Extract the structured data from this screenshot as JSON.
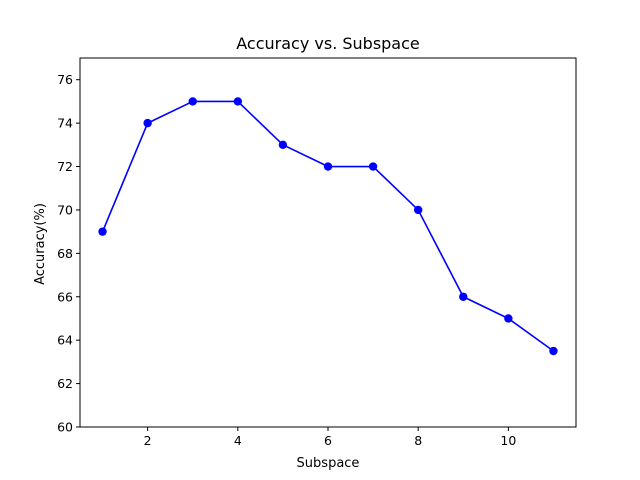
{
  "chart_data": {
    "type": "line",
    "title": "Accuracy vs. Subspace",
    "xlabel": "Subspace",
    "ylabel": "Accuracy(%)",
    "xlim": [
      0.5,
      11.5
    ],
    "ylim": [
      60,
      77
    ],
    "xticks": [
      2,
      4,
      6,
      8,
      10
    ],
    "yticks": [
      60,
      62,
      64,
      66,
      68,
      70,
      72,
      74,
      76
    ],
    "grid": false,
    "series": [
      {
        "color": "#0000ff",
        "marker": "circle",
        "x": [
          1,
          2,
          3,
          4,
          5,
          6,
          7,
          8,
          9,
          10,
          11
        ],
        "y": [
          69,
          74,
          75,
          75,
          73,
          72,
          72,
          70,
          66,
          65,
          63.5
        ]
      }
    ]
  }
}
